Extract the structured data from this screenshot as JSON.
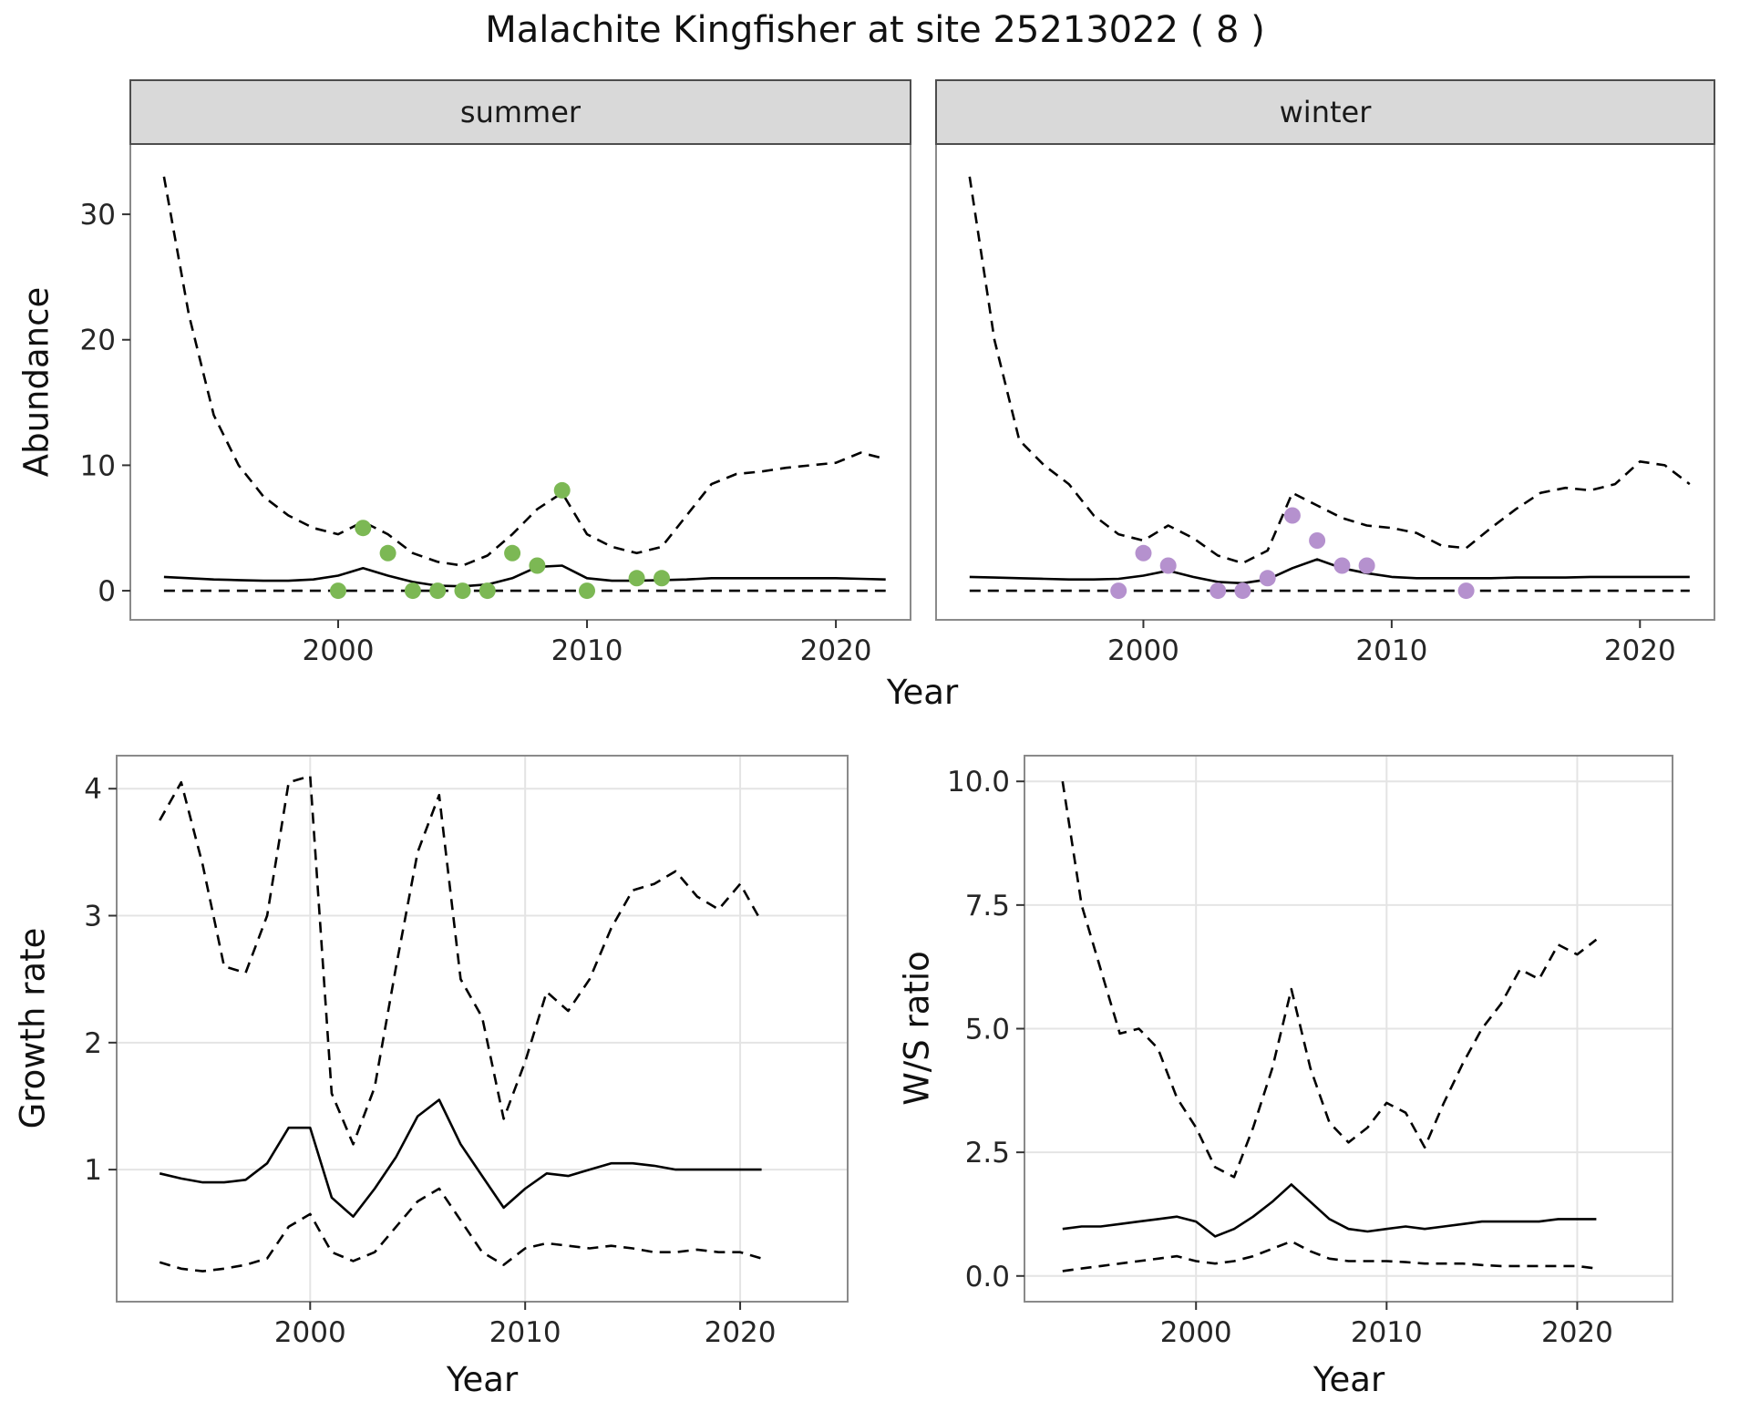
{
  "title": "Malachite Kingfisher at site 25213022 ( 8 )",
  "axes": {
    "x": "Year",
    "abundance": "Abundance",
    "growth": "Growth rate",
    "ws": "W/S ratio"
  },
  "colors": {
    "line": "#000000",
    "summer_point": "#7cb854",
    "winter_point": "#b591ce",
    "strip_bg": "#d9d9d9",
    "strip_border": "#4d4d4d",
    "panel_border": "#8a8a8a",
    "grid": "#e4e4e4",
    "tick": "#333333",
    "tick_text": "#262626"
  },
  "chart_data": [
    {
      "type": "line",
      "facet": "summer",
      "xlabel": "Year",
      "ylabel": "Abundance",
      "xlim": [
        1991.65,
        2023.0
      ],
      "ylim": [
        -2.32,
        35.6
      ],
      "x_ticks": [
        2000,
        2010,
        2020
      ],
      "x_tick_labels": [
        "2000",
        "2010",
        "2020"
      ],
      "y_ticks": [
        0,
        10,
        20,
        30
      ],
      "y_tick_labels": [
        "0",
        "10",
        "20",
        "30"
      ],
      "years": [
        1993,
        1994,
        1995,
        1996,
        1997,
        1998,
        1999,
        2000,
        2001,
        2002,
        2003,
        2004,
        2005,
        2006,
        2007,
        2008,
        2009,
        2010,
        2011,
        2012,
        2013,
        2014,
        2015,
        2016,
        2017,
        2018,
        2019,
        2020,
        2021,
        2022
      ],
      "series": [
        {
          "name": "upper-ci",
          "style": "dashed",
          "values": [
            33,
            22,
            14,
            10,
            7.5,
            6,
            5,
            4.5,
            5.5,
            4.5,
            3,
            2.3,
            2,
            2.8,
            4.5,
            6.5,
            7.8,
            4.5,
            3.5,
            3,
            3.5,
            6,
            8.5,
            9.3,
            9.5,
            9.8,
            10,
            10.2,
            11,
            10.5
          ]
        },
        {
          "name": "median",
          "style": "solid",
          "values": [
            1.1,
            1.0,
            0.9,
            0.85,
            0.8,
            0.8,
            0.9,
            1.2,
            1.8,
            1.2,
            0.7,
            0.4,
            0.35,
            0.5,
            1.0,
            1.9,
            2.0,
            1.0,
            0.8,
            0.8,
            0.85,
            0.9,
            1.0,
            1.0,
            1.0,
            1.0,
            1.0,
            1.0,
            0.95,
            0.9
          ]
        },
        {
          "name": "lower-ci",
          "style": "dashed",
          "values": [
            0,
            0,
            0,
            0,
            0,
            0,
            0,
            0,
            0,
            0,
            0,
            0,
            0,
            0,
            0,
            0,
            0,
            0,
            0,
            0,
            0,
            0,
            0,
            0,
            0,
            0,
            0,
            0,
            0,
            0
          ]
        }
      ],
      "points": {
        "name": "observations",
        "color_key": "summer_point",
        "x": [
          2000,
          2001,
          2002,
          2003,
          2004,
          2005,
          2006,
          2007,
          2008,
          2009,
          2010,
          2012,
          2013
        ],
        "y": [
          0,
          5,
          3,
          0,
          0,
          0,
          0,
          3,
          2,
          8,
          0,
          1,
          1
        ]
      }
    },
    {
      "type": "line",
      "facet": "winter",
      "xlabel": "Year",
      "ylabel": "Abundance",
      "xlim": [
        1991.65,
        2023.0
      ],
      "ylim": [
        -2.32,
        35.6
      ],
      "x_ticks": [
        2000,
        2010,
        2020
      ],
      "x_tick_labels": [
        "2000",
        "2010",
        "2020"
      ],
      "y_ticks": [
        0,
        10,
        20,
        30
      ],
      "y_tick_labels": [
        "0",
        "10",
        "20",
        "30"
      ],
      "years": [
        1993,
        1994,
        1995,
        1996,
        1997,
        1998,
        1999,
        2000,
        2001,
        2002,
        2003,
        2004,
        2005,
        2006,
        2007,
        2008,
        2009,
        2010,
        2011,
        2012,
        2013,
        2014,
        2015,
        2016,
        2017,
        2018,
        2019,
        2020,
        2021,
        2022
      ],
      "series": [
        {
          "name": "upper-ci",
          "style": "dashed",
          "values": [
            33,
            20,
            12,
            10,
            8.5,
            6,
            4.5,
            4,
            5.2,
            4.2,
            2.8,
            2.2,
            3.2,
            7.8,
            6.8,
            5.8,
            5.2,
            5,
            4.6,
            3.6,
            3.4,
            5,
            6.5,
            7.8,
            8.2,
            8,
            8.5,
            10.3,
            10,
            8.5
          ]
        },
        {
          "name": "median",
          "style": "solid",
          "values": [
            1.1,
            1.05,
            1.0,
            0.95,
            0.9,
            0.9,
            0.95,
            1.2,
            1.6,
            1.1,
            0.7,
            0.6,
            0.9,
            1.8,
            2.5,
            1.8,
            1.4,
            1.1,
            1.0,
            1.0,
            1.0,
            1.0,
            1.05,
            1.05,
            1.05,
            1.1,
            1.1,
            1.1,
            1.1,
            1.1
          ]
        },
        {
          "name": "lower-ci",
          "style": "dashed",
          "values": [
            0,
            0,
            0,
            0,
            0,
            0,
            0,
            0,
            0,
            0,
            0,
            0,
            0,
            0,
            0,
            0,
            0,
            0,
            0,
            0,
            0,
            0,
            0,
            0,
            0,
            0,
            0,
            0,
            0,
            0
          ]
        }
      ],
      "points": {
        "name": "observations",
        "color_key": "winter_point",
        "x": [
          1999,
          2000,
          2001,
          2003,
          2004,
          2005,
          2006,
          2007,
          2008,
          2009,
          2013
        ],
        "y": [
          0,
          3,
          2,
          0,
          0,
          1,
          6,
          4,
          2,
          2,
          0
        ]
      }
    },
    {
      "type": "line",
      "facet": null,
      "xlabel": "Year",
      "ylabel": "Growth rate",
      "xlim": [
        1991.0,
        2025.0
      ],
      "ylim": [
        -0.04,
        4.26
      ],
      "x_ticks": [
        2000,
        2010,
        2020
      ],
      "x_tick_labels": [
        "2000",
        "2010",
        "2020"
      ],
      "y_ticks": [
        1,
        2,
        3,
        4
      ],
      "y_tick_labels": [
        "1",
        "2",
        "3",
        "4"
      ],
      "years": [
        1993,
        1994,
        1995,
        1996,
        1997,
        1998,
        1999,
        2000,
        2001,
        2002,
        2003,
        2004,
        2005,
        2006,
        2007,
        2008,
        2009,
        2010,
        2011,
        2012,
        2013,
        2014,
        2015,
        2016,
        2017,
        2018,
        2019,
        2020,
        2021
      ],
      "series": [
        {
          "name": "upper-ci",
          "style": "dashed",
          "values": [
            3.75,
            4.05,
            3.4,
            2.6,
            2.55,
            3.0,
            4.05,
            4.1,
            1.6,
            1.2,
            1.65,
            2.6,
            3.5,
            3.95,
            2.5,
            2.2,
            1.4,
            1.85,
            2.4,
            2.25,
            2.5,
            2.9,
            3.2,
            3.25,
            3.35,
            3.15,
            3.05,
            3.25,
            2.95
          ]
        },
        {
          "name": "median",
          "style": "solid",
          "values": [
            0.97,
            0.93,
            0.9,
            0.9,
            0.92,
            1.05,
            1.33,
            1.33,
            0.78,
            0.63,
            0.85,
            1.1,
            1.42,
            1.55,
            1.2,
            0.95,
            0.7,
            0.85,
            0.97,
            0.95,
            1.0,
            1.05,
            1.05,
            1.03,
            1.0,
            1.0,
            1.0,
            1.0,
            1.0
          ]
        },
        {
          "name": "lower-ci",
          "style": "dashed",
          "values": [
            0.27,
            0.22,
            0.2,
            0.22,
            0.25,
            0.3,
            0.55,
            0.65,
            0.35,
            0.28,
            0.35,
            0.55,
            0.75,
            0.85,
            0.6,
            0.35,
            0.25,
            0.38,
            0.42,
            0.4,
            0.38,
            0.4,
            0.38,
            0.35,
            0.35,
            0.37,
            0.35,
            0.35,
            0.3
          ]
        }
      ],
      "points": null
    },
    {
      "type": "line",
      "facet": null,
      "xlabel": "Year",
      "ylabel": "W/S ratio",
      "xlim": [
        1991.0,
        2025.0
      ],
      "ylim": [
        -0.52,
        10.52
      ],
      "x_ticks": [
        2000,
        2010,
        2020
      ],
      "x_tick_labels": [
        "2000",
        "2010",
        "2020"
      ],
      "y_ticks": [
        0.0,
        2.5,
        5.0,
        7.5,
        10.0
      ],
      "y_tick_labels": [
        "0.0",
        "2.5",
        "5.0",
        "7.5",
        "10.0"
      ],
      "years": [
        1993,
        1994,
        1995,
        1996,
        1997,
        1998,
        1999,
        2000,
        2001,
        2002,
        2003,
        2004,
        2005,
        2006,
        2007,
        2008,
        2009,
        2010,
        2011,
        2012,
        2013,
        2014,
        2015,
        2016,
        2017,
        2018,
        2019,
        2020,
        2021
      ],
      "series": [
        {
          "name": "upper-ci",
          "style": "dashed",
          "values": [
            10.0,
            7.5,
            6.2,
            4.9,
            5.0,
            4.6,
            3.6,
            3.0,
            2.2,
            2.0,
            3.0,
            4.2,
            5.8,
            4.2,
            3.1,
            2.7,
            3.0,
            3.5,
            3.3,
            2.6,
            3.5,
            4.3,
            5.0,
            5.5,
            6.2,
            6.0,
            6.7,
            6.5,
            6.8
          ]
        },
        {
          "name": "median",
          "style": "solid",
          "values": [
            0.95,
            1.0,
            1.0,
            1.05,
            1.1,
            1.15,
            1.2,
            1.1,
            0.8,
            0.95,
            1.2,
            1.5,
            1.85,
            1.5,
            1.15,
            0.95,
            0.9,
            0.95,
            1.0,
            0.95,
            1.0,
            1.05,
            1.1,
            1.1,
            1.1,
            1.1,
            1.15,
            1.15,
            1.15
          ]
        },
        {
          "name": "lower-ci",
          "style": "dashed",
          "values": [
            0.1,
            0.15,
            0.2,
            0.25,
            0.3,
            0.35,
            0.4,
            0.3,
            0.25,
            0.3,
            0.4,
            0.55,
            0.7,
            0.5,
            0.35,
            0.3,
            0.3,
            0.3,
            0.28,
            0.25,
            0.25,
            0.25,
            0.22,
            0.2,
            0.2,
            0.2,
            0.2,
            0.2,
            0.15
          ]
        }
      ],
      "points": null
    }
  ]
}
